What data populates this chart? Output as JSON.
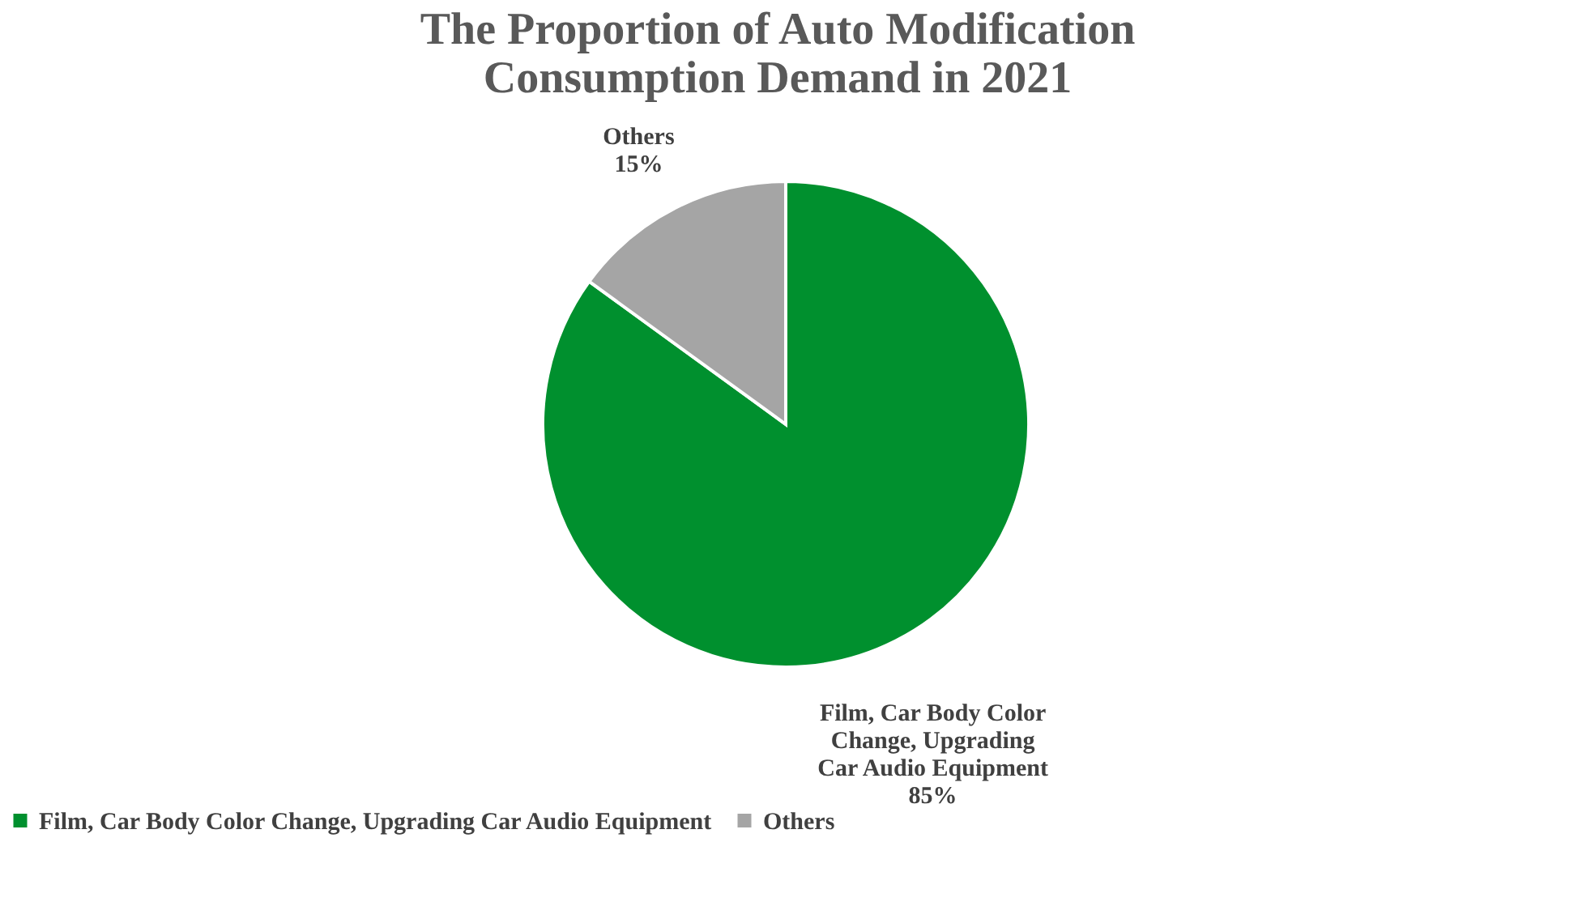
{
  "chart_data": {
    "type": "pie",
    "title": "The Proportion of Auto Modification Consumption Demand in 2021",
    "categories": [
      "Film, Car Body Color Change, Upgrading Car Audio Equipment",
      "Others"
    ],
    "values": [
      85,
      15
    ],
    "colors": [
      "#00902e",
      "#a5a5a5"
    ],
    "value_labels": [
      "85%",
      "15%"
    ],
    "legend": "bottom"
  }
}
